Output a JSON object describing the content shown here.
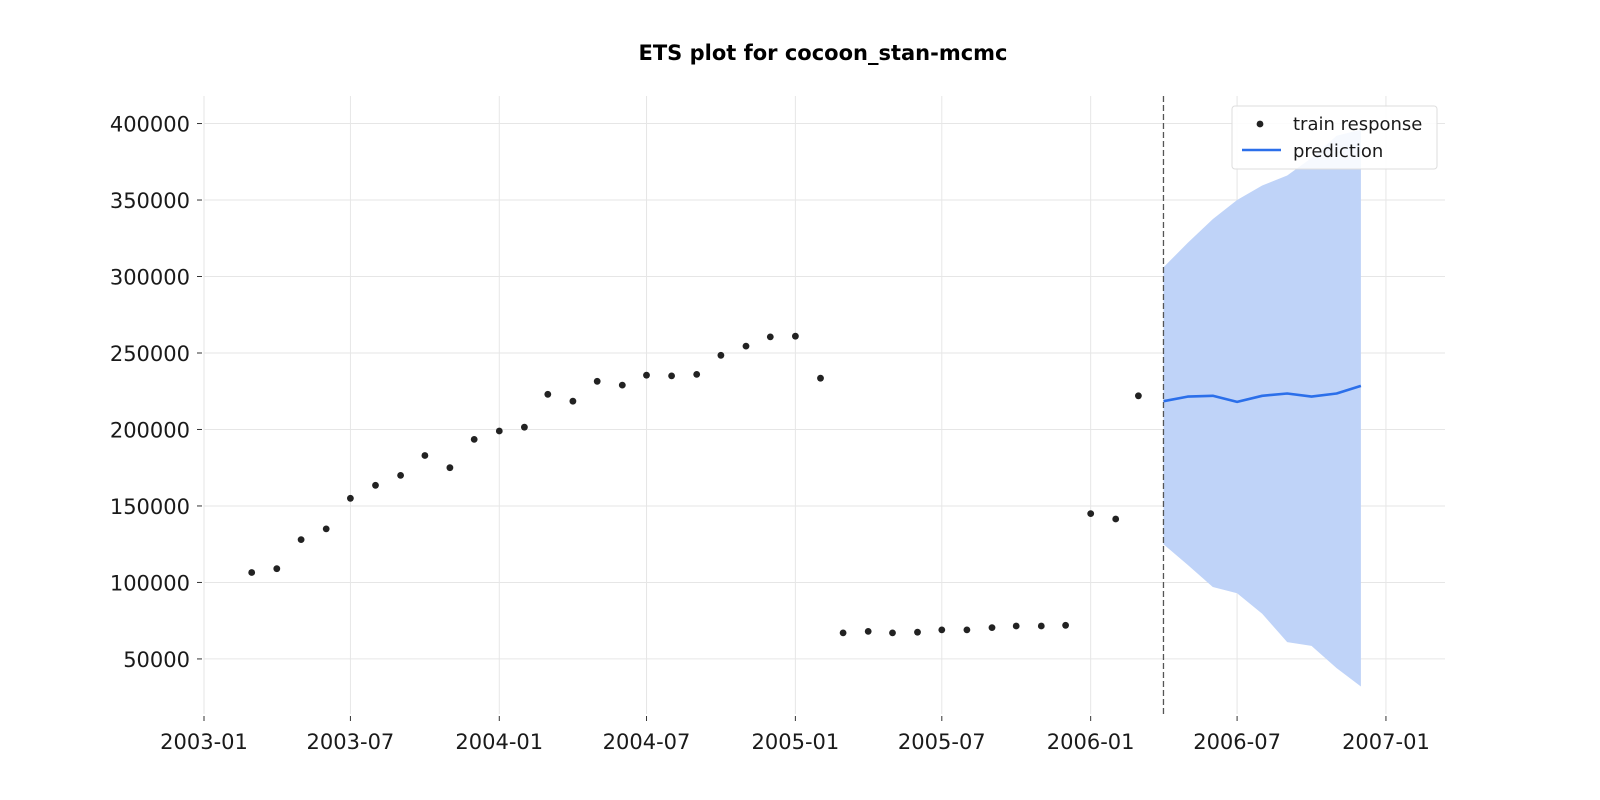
{
  "chart_data": {
    "type": "scatter",
    "title": "ETS plot for cocoon_stan-mcmc",
    "xlabel": "",
    "ylabel": "",
    "x_axis_type": "date",
    "xlim": [
      "2003-01-01",
      "2007-03-15"
    ],
    "ylim": [
      14000,
      418000
    ],
    "x_ticks": [
      "2003-01-01",
      "2003-07-01",
      "2004-01-01",
      "2004-07-01",
      "2005-01-01",
      "2005-07-01",
      "2006-01-01",
      "2006-07-01",
      "2007-01-01"
    ],
    "x_tick_labels": [
      "2003-01",
      "2003-07",
      "2004-01",
      "2004-07",
      "2005-01",
      "2005-07",
      "2006-01",
      "2006-07",
      "2007-01"
    ],
    "y_ticks": [
      50000,
      100000,
      150000,
      200000,
      250000,
      300000,
      350000,
      400000
    ],
    "y_tick_labels": [
      "50000",
      "100000",
      "150000",
      "200000",
      "250000",
      "300000",
      "350000",
      "400000"
    ],
    "grid": true,
    "legend_position": "top-right",
    "cutoff_date": "2006-04-01",
    "series": [
      {
        "name": "train response",
        "type": "scatter",
        "color": "#222222",
        "points": [
          [
            "2003-03-01",
            106500
          ],
          [
            "2003-04-01",
            109000
          ],
          [
            "2003-05-01",
            128000
          ],
          [
            "2003-06-01",
            135000
          ],
          [
            "2003-07-01",
            155000
          ],
          [
            "2003-08-01",
            163500
          ],
          [
            "2003-09-01",
            170000
          ],
          [
            "2003-10-01",
            183000
          ],
          [
            "2003-11-01",
            175000
          ],
          [
            "2003-12-01",
            193500
          ],
          [
            "2004-01-01",
            199000
          ],
          [
            "2004-02-01",
            201500
          ],
          [
            "2004-03-01",
            223000
          ],
          [
            "2004-04-01",
            218500
          ],
          [
            "2004-05-01",
            231500
          ],
          [
            "2004-06-01",
            229000
          ],
          [
            "2004-07-01",
            235500
          ],
          [
            "2004-08-01",
            235000
          ],
          [
            "2004-09-01",
            236000
          ],
          [
            "2004-10-01",
            248500
          ],
          [
            "2004-11-01",
            254500
          ],
          [
            "2004-12-01",
            260500
          ],
          [
            "2005-01-01",
            261000
          ],
          [
            "2005-02-01",
            233500
          ],
          [
            "2005-03-01",
            67000
          ],
          [
            "2005-04-01",
            68000
          ],
          [
            "2005-05-01",
            67000
          ],
          [
            "2005-06-01",
            67500
          ],
          [
            "2005-07-01",
            69000
          ],
          [
            "2005-08-01",
            69000
          ],
          [
            "2005-09-01",
            70500
          ],
          [
            "2005-10-01",
            71500
          ],
          [
            "2005-11-01",
            71500
          ],
          [
            "2005-12-01",
            72000
          ],
          [
            "2006-01-01",
            145000
          ],
          [
            "2006-02-01",
            141500
          ],
          [
            "2006-03-01",
            222000
          ]
        ]
      },
      {
        "name": "prediction",
        "type": "line",
        "color": "#2b6fea",
        "points": [
          [
            "2006-04-01",
            218500
          ],
          [
            "2006-05-01",
            221500
          ],
          [
            "2006-06-01",
            222000
          ],
          [
            "2006-07-01",
            218000
          ],
          [
            "2006-08-01",
            222000
          ],
          [
            "2006-09-01",
            223500
          ],
          [
            "2006-10-01",
            221500
          ],
          [
            "2006-11-01",
            223500
          ],
          [
            "2006-12-01",
            228500
          ]
        ],
        "interval": {
          "color": "#bfd3f8",
          "upper": [
            306000,
            322000,
            337500,
            350000,
            359500,
            366000,
            377500,
            392000,
            396000
          ],
          "lower": [
            125000,
            111500,
            97000,
            93000,
            79500,
            61000,
            58500,
            44000,
            32000
          ]
        }
      }
    ]
  }
}
